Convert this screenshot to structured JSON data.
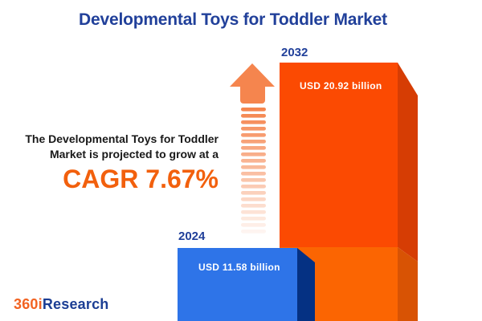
{
  "title": "Developmental Toys for Toddler Market",
  "projection": {
    "line1": "The Developmental Toys for Toddler",
    "line2": "Market is projected to grow at a",
    "cagr": "CAGR 7.67%"
  },
  "bars": [
    {
      "year": "2024",
      "value_label": "USD 11.58 billion"
    },
    {
      "year": "2032",
      "value_label": "USD 20.92 billion"
    }
  ],
  "logo": {
    "prefix": "360i",
    "suffix": "Research"
  },
  "colors": {
    "title_blue": "#21409A",
    "text_dark": "#191919",
    "cagr_orange": "#F2600D",
    "arrow_orange": "#F5854E",
    "bar_2024_face": "#2E74E8",
    "bar_2024_side": "#053183",
    "bar_2032_face_top": "#FB4A02",
    "bar_2032_face_bottom": "#FB6502",
    "bar_2032_side_top": "#D63D04",
    "bar_2032_side_bottom": "#D85304",
    "value_text": "#FFFFFF",
    "logo_orange": "#F26322",
    "logo_blue": "#1C3E94"
  },
  "chart_data": {
    "type": "bar",
    "title": "Developmental Toys for Toddler Market",
    "categories": [
      "2024",
      "2032"
    ],
    "values": [
      11.58,
      20.92
    ],
    "unit": "USD billion",
    "value_labels": [
      "USD 11.58 billion",
      "USD 20.92 billion"
    ],
    "annotation": "The Developmental Toys for Toddler Market is projected to grow at a CAGR 7.67%",
    "cagr_percent": 7.67,
    "legend": "none",
    "gridlines": false,
    "orientation": "vertical",
    "style": "3d-extruded-infographic"
  }
}
